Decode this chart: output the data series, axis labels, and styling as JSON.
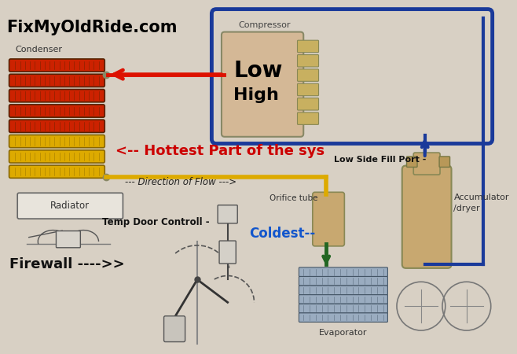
{
  "bg_color": "#d8d0c4",
  "site_text": "FixMyOldRide.com",
  "site_color": "#000000",
  "site_fontsize": 15,
  "labels": {
    "compressor": "Compressor",
    "condenser": "Condenser",
    "low_side_fill": "Low Side Fill Port -",
    "accumulator": [
      "Accumulator",
      "/dryer"
    ],
    "radiator": "Radiator",
    "orifice": "Orifice tube",
    "coldest": "Coldest--",
    "hottest": "<-- Hottest Part of the sys",
    "direction": "--- Direction of Flow --->",
    "temp_door": "Temp Door Controll -",
    "firewall": "Firewall ---->>",
    "evaporator": "Evaporator"
  },
  "colors": {
    "red_line": "#dd1100",
    "yellow_line": "#ddaa00",
    "blue_line": "#1a3a9a",
    "green_line": "#226622",
    "hottest_text": "#cc0000",
    "coldest_text": "#1155cc",
    "compressor_box": "#d4b896",
    "accumulator_color": "#c8a870",
    "orifice_color": "#c8a870",
    "condenser_red": "#cc2200",
    "condenser_dark": "#552200",
    "condenser_yellow": "#ddaa00",
    "condenser_ydark": "#886600"
  },
  "layout": {
    "fig_w": 6.58,
    "fig_h": 4.5,
    "dpi": 100
  }
}
